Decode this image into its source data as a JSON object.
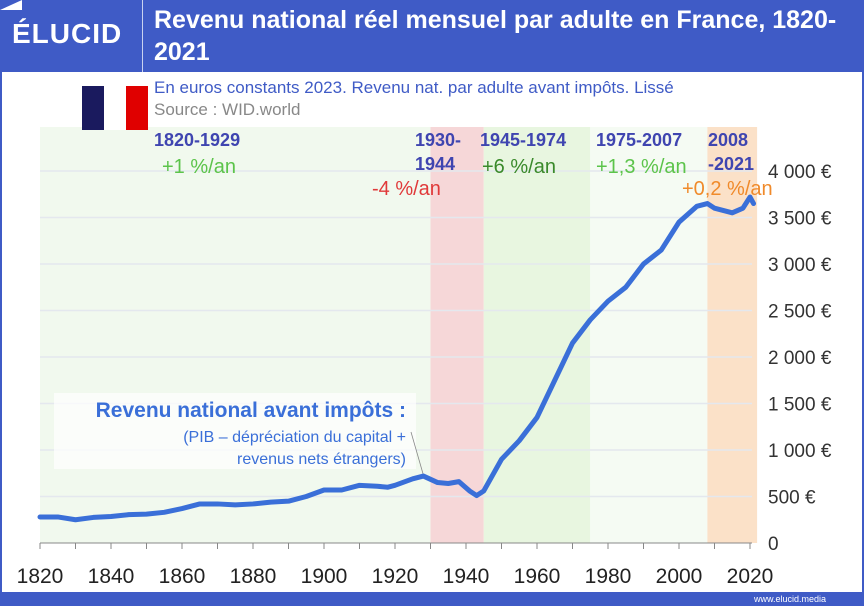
{
  "header": {
    "logo": "ÉLUCID",
    "title": "Revenu national réel mensuel par adulte en France, 1820-2021"
  },
  "subtitle": "En euros constants 2023. Revenu nat. par adulte avant impôts. Lissé",
  "source": "Source : WID.world",
  "footer": "www.elucid.media",
  "flag_colors": [
    "#1a1a5e",
    "#ffffff",
    "#e00000"
  ],
  "chart_data": {
    "type": "line",
    "title": "Revenu national réel mensuel par adulte en France, 1820-2021",
    "xlim": [
      1820,
      2021
    ],
    "ylim": [
      0,
      4000
    ],
    "x_ticks": [
      1820,
      1840,
      1860,
      1880,
      1900,
      1920,
      1940,
      1960,
      1980,
      2000,
      2020
    ],
    "y_ticks": [
      {
        "v": 0,
        "label": "0"
      },
      {
        "v": 500,
        "label": "500 €"
      },
      {
        "v": 1000,
        "label": "1 000 €"
      },
      {
        "v": 1500,
        "label": "1 500 €"
      },
      {
        "v": 2000,
        "label": "2 000 €"
      },
      {
        "v": 2500,
        "label": "2 500 €"
      },
      {
        "v": 3000,
        "label": "3 000 €"
      },
      {
        "v": 3500,
        "label": "3 500 €"
      },
      {
        "v": 4000,
        "label": "4 000 €"
      }
    ],
    "grid": true,
    "line_color": "#3a6fd8",
    "series": [
      {
        "x": [
          1820,
          1825,
          1830,
          1835,
          1840,
          1845,
          1850,
          1855,
          1860,
          1865,
          1870,
          1875,
          1880,
          1885,
          1890,
          1895,
          1900,
          1905,
          1910,
          1915,
          1918,
          1920,
          1925,
          1928,
          1932,
          1935,
          1938,
          1941,
          1943,
          1945,
          1950,
          1955,
          1960,
          1965,
          1970,
          1975,
          1980,
          1985,
          1990,
          1995,
          2000,
          2005,
          2008,
          2010,
          2015,
          2018,
          2020,
          2021
        ],
        "y": [
          280,
          280,
          250,
          275,
          285,
          305,
          310,
          330,
          370,
          420,
          420,
          410,
          420,
          440,
          450,
          500,
          570,
          570,
          620,
          610,
          600,
          620,
          690,
          720,
          650,
          640,
          660,
          560,
          510,
          560,
          900,
          1100,
          1350,
          1750,
          2150,
          2400,
          2600,
          2750,
          3000,
          3150,
          3450,
          3620,
          3650,
          3600,
          3550,
          3600,
          3720,
          3650
        ]
      }
    ],
    "periods": [
      {
        "start": 1820,
        "end": 1929,
        "label": "1820-1929",
        "rate": "+1 %/an",
        "color": "#f1f9ee",
        "rate_color": "#5cc44a"
      },
      {
        "start": 1930,
        "end": 1944,
        "label": "1930-\n1944",
        "rate": "-4 %/an",
        "color": "#f6d7d8",
        "rate_color": "#e03a3a"
      },
      {
        "start": 1945,
        "end": 1974,
        "label": "1945-1974",
        "rate": "+6 %/an",
        "color": "#e8f6e0",
        "rate_color": "#3a8a2a"
      },
      {
        "start": 1975,
        "end": 2007,
        "label": "1975-2007",
        "rate": "+1,3 %/an",
        "color": "#f5fbf3",
        "rate_color": "#5cc44a"
      },
      {
        "start": 2008,
        "end": 2021,
        "label": "2008\n-2021",
        "rate": "+0,2 %/an",
        "color": "#fbe1c8",
        "rate_color": "#f08a2a"
      }
    ],
    "annotation": {
      "title": "Revenu national avant impôts :",
      "line1": "(PIB – dépréciation du capital +",
      "line2": "revenus nets étrangers)",
      "points_to_year": 1928
    }
  }
}
